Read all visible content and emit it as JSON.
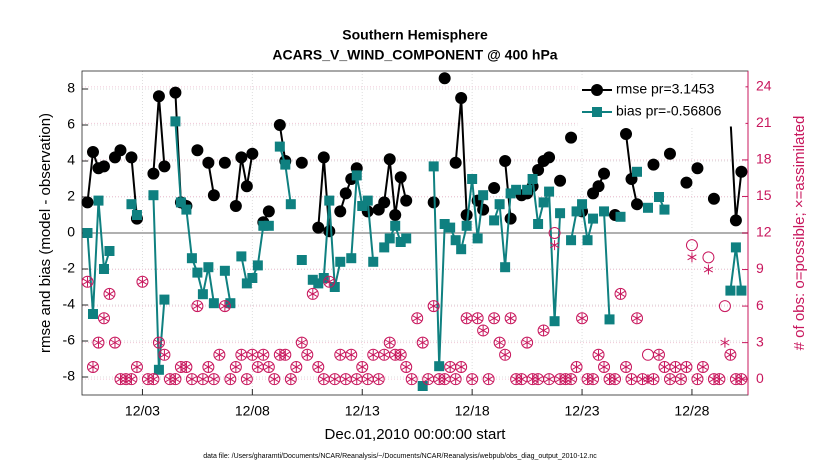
{
  "chart_data": {
    "type": "line",
    "title": [
      "Southern Hemisphere",
      "ACARS_V_WIND_COMPONENT @ 400 hPa"
    ],
    "xlabel": "Dec.01,2010 00:00:00 start",
    "ylabel": "rmse and bias (model - observation)",
    "y2label": "# of obs: o=possible; ×=assimilated",
    "footnote": "data file: /Users/gharamti/Documents/NCAR/Reanalysis/~/Documents/NCAR/Reanalysis/webpub/obs_diag_output_2010-12.nc",
    "xlim": [
      0.25,
      30.55
    ],
    "xticks": [
      {
        "value": 3,
        "label": "12/03"
      },
      {
        "value": 8,
        "label": "12/08"
      },
      {
        "value": 13,
        "label": "12/13"
      },
      {
        "value": 18,
        "label": "12/18"
      },
      {
        "value": 23,
        "label": "12/23"
      },
      {
        "value": 28,
        "label": "12/28"
      }
    ],
    "ylim": [
      -9,
      9
    ],
    "yticks": [
      -8,
      -6,
      -4,
      -2,
      0,
      2,
      4,
      6,
      8
    ],
    "y2lim": [
      -1.3,
      25.3
    ],
    "y2ticks": [
      0,
      3,
      6,
      9,
      12,
      15,
      18,
      21,
      24
    ],
    "grid": true,
    "legend": "upper right",
    "x": [
      0.5,
      0.75,
      1,
      1.25,
      1.5,
      1.75,
      2,
      2.25,
      2.5,
      2.75,
      3,
      3.25,
      3.5,
      3.75,
      4,
      4.25,
      4.5,
      4.75,
      5,
      5.25,
      5.5,
      5.75,
      6,
      6.25,
      6.5,
      6.75,
      7,
      7.25,
      7.5,
      7.75,
      8,
      8.25,
      8.5,
      8.75,
      9,
      9.25,
      9.5,
      9.75,
      10,
      10.25,
      10.5,
      10.75,
      11,
      11.25,
      11.5,
      11.75,
      12,
      12.25,
      12.5,
      12.75,
      13,
      13.25,
      13.5,
      13.75,
      14,
      14.25,
      14.5,
      14.75,
      15,
      15.25,
      15.5,
      15.75,
      16,
      16.25,
      16.5,
      16.75,
      17,
      17.25,
      17.5,
      17.75,
      18,
      18.25,
      18.5,
      18.75,
      19,
      19.25,
      19.5,
      19.75,
      20,
      20.25,
      20.5,
      20.75,
      21,
      21.25,
      21.5,
      21.75,
      22,
      22.25,
      22.5,
      22.75,
      23,
      23.25,
      23.5,
      23.75,
      24,
      24.25,
      24.5,
      24.75,
      25,
      25.25,
      25.5,
      25.75,
      26,
      26.25,
      26.5,
      26.75,
      27,
      27.25,
      27.5,
      27.75,
      28,
      28.25,
      28.5,
      28.75,
      29,
      29.25,
      29.5,
      29.75,
      30,
      30.25
    ],
    "series": [
      {
        "name": "rmse pr=3.1453",
        "color": "#000000",
        "marker": "circle",
        "values": [
          1.7,
          4.5,
          3.6,
          3.7,
          null,
          4.2,
          4.6,
          null,
          4.2,
          0.8,
          null,
          null,
          3.3,
          7.6,
          3.7,
          null,
          7.8,
          1.7,
          1.5,
          null,
          4.6,
          null,
          3.9,
          2.1,
          null,
          3.9,
          null,
          1.5,
          4.2,
          2.6,
          4.4,
          null,
          0.6,
          1.2,
          null,
          6.0,
          4.0,
          null,
          null,
          3.9,
          null,
          null,
          0.3,
          4.2,
          0.1,
          null,
          1.2,
          2.2,
          3.0,
          3.6,
          null,
          1.2,
          null,
          1.3,
          1.7,
          4.1,
          1.0,
          3.1,
          1.8,
          null,
          null,
          null,
          null,
          1.7,
          null,
          8.6,
          null,
          3.9,
          7.5,
          1.0,
          null,
          1.8,
          1.3,
          null,
          2.5,
          null,
          4.0,
          0.8,
          null,
          2.1,
          2.2,
          2.6,
          3.5,
          4.0,
          4.2,
          null,
          2.9,
          null,
          5.3,
          null,
          1.2,
          null,
          2.2,
          2.6,
          3.3,
          null,
          1.0,
          null,
          5.5,
          3.0,
          1.6,
          null,
          null,
          3.8,
          null,
          null,
          4.4,
          null,
          null,
          2.8,
          null,
          3.6,
          null,
          null,
          1.9,
          null,
          null,
          6.4,
          0.7,
          3.4
        ]
      },
      {
        "name": "bias pr=-0.56806",
        "color": "#0f8080",
        "marker": "square",
        "values": [
          0,
          -4.5,
          1.8,
          -2.0,
          -1.0,
          null,
          null,
          null,
          1.6,
          1.0,
          null,
          null,
          2.1,
          -7.6,
          -3.7,
          null,
          6.2,
          1.7,
          1.3,
          -1.4,
          -2.2,
          -3.4,
          -1.9,
          -3.9,
          null,
          -2.1,
          -3.9,
          null,
          -1.3,
          -2.8,
          -2.5,
          -1.8,
          0.4,
          0.4,
          null,
          4.8,
          3.8,
          1.6,
          null,
          -1.5,
          null,
          -2.6,
          -2.8,
          -2.5,
          1.8,
          -3.0,
          -1.6,
          null,
          -1.4,
          3.2,
          1.5,
          1.8,
          -1.6,
          null,
          -0.8,
          -0.3,
          0.4,
          -0.5,
          -0.3,
          null,
          null,
          -8.5,
          null,
          3.7,
          -7.4,
          0.5,
          0.3,
          -0.4,
          -0.9,
          0.4,
          3.0,
          -0.3,
          2.1,
          null,
          0.7,
          1.6,
          -1.9,
          2.2,
          2.4,
          null,
          2.4,
          3.0,
          0.5,
          1.7,
          2.3,
          -4.9,
          1.1,
          null,
          -0.4,
          1.2,
          1.6,
          -0.4,
          0.8,
          null,
          1.2,
          -4.8,
          null,
          0.9,
          null,
          null,
          3.4,
          null,
          1.4,
          null,
          2.0,
          1.3,
          null,
          null,
          null,
          null,
          null,
          null,
          null,
          null,
          null,
          null,
          null,
          -3.2,
          -0.8,
          -3.2
        ]
      },
      {
        "name": "possible",
        "color": "#c8175d",
        "marker": "open-circle",
        "axis": "y2",
        "values": [
          8,
          1,
          3,
          5,
          7,
          3,
          0,
          0,
          0,
          1,
          8,
          0,
          0,
          3,
          2,
          0,
          0,
          1,
          1,
          0,
          6,
          0,
          1,
          0,
          2,
          6,
          0,
          1,
          2,
          0,
          2,
          1,
          2,
          1,
          0,
          2,
          2,
          0,
          1,
          3,
          2,
          7,
          1,
          0,
          8,
          0,
          2,
          0,
          2,
          0,
          1,
          0,
          2,
          0,
          2,
          3,
          2,
          2,
          1,
          0,
          5,
          3,
          0,
          6,
          0,
          0,
          1,
          0,
          1,
          5,
          0,
          5,
          4,
          0,
          5,
          3,
          2,
          5,
          0,
          0,
          3,
          0,
          0,
          4,
          0,
          12,
          0,
          0,
          0,
          1,
          5,
          0,
          0,
          2,
          1,
          0,
          0,
          7,
          1,
          0,
          5,
          0,
          2,
          0,
          2,
          1,
          0,
          1,
          0,
          1,
          11,
          0,
          1,
          10,
          0,
          0,
          6,
          2,
          0,
          0
        ]
      },
      {
        "name": "assimilated",
        "color": "#c8175d",
        "marker": "asterisk",
        "axis": "y2",
        "values": [
          8,
          1,
          3,
          5,
          7,
          3,
          0,
          0,
          0,
          1,
          8,
          0,
          0,
          3,
          2,
          0,
          0,
          1,
          1,
          0,
          6,
          0,
          1,
          0,
          2,
          6,
          0,
          1,
          2,
          0,
          2,
          1,
          2,
          1,
          0,
          2,
          2,
          0,
          1,
          3,
          2,
          7,
          1,
          0,
          8,
          0,
          2,
          0,
          2,
          0,
          1,
          0,
          2,
          0,
          2,
          3,
          2,
          2,
          1,
          0,
          5,
          3,
          0,
          6,
          0,
          0,
          1,
          0,
          1,
          5,
          0,
          5,
          4,
          0,
          5,
          3,
          2,
          5,
          0,
          0,
          3,
          0,
          0,
          4,
          0,
          11,
          0,
          0,
          0,
          1,
          5,
          0,
          0,
          2,
          1,
          0,
          0,
          7,
          1,
          0,
          5,
          0,
          0,
          0,
          2,
          1,
          0,
          1,
          0,
          1,
          10,
          0,
          1,
          9,
          0,
          0,
          3,
          2,
          0,
          0
        ]
      }
    ]
  }
}
